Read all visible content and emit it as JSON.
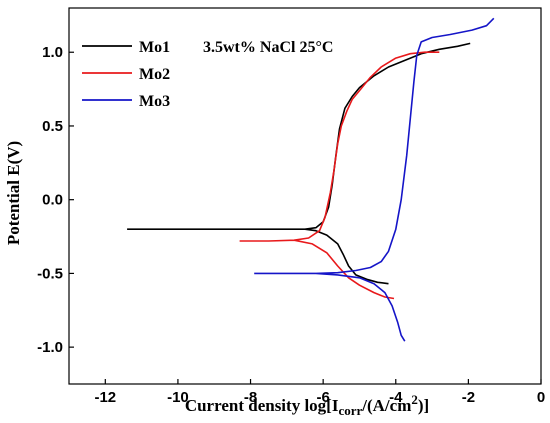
{
  "chart_data": {
    "type": "line",
    "title": "",
    "annotation": "3.5wt% NaCl  25°C",
    "xlabel": "Current density log[Icorr/(A/cm2)]",
    "xlabel_parts": {
      "prefix": "Current density log[I",
      "sub": "corr",
      "mid": "/(A/cm",
      "sup": "2",
      "suffix": ")]"
    },
    "ylabel": "Potential E(V)",
    "xlim": [
      -13,
      0
    ],
    "ylim": [
      -1.25,
      1.3
    ],
    "x_ticks": [
      -12,
      -10,
      -8,
      -6,
      -4,
      -2,
      0
    ],
    "x_tick_labels": [
      "-12",
      "-10",
      "-8",
      "-6",
      "-4",
      "-2",
      "0"
    ],
    "y_ticks": [
      -1.0,
      -0.5,
      0.0,
      0.5,
      1.0
    ],
    "y_tick_labels": [
      "-1.0",
      "-0.5",
      "0.0",
      "0.5",
      "1.0"
    ],
    "grid": false,
    "legend_position": "top-left",
    "series": [
      {
        "name": "Mo1",
        "color": "#000000",
        "points": [
          [
            -11.4,
            -0.2
          ],
          [
            -9.0,
            -0.2
          ],
          [
            -7.0,
            -0.2
          ],
          [
            -6.5,
            -0.2
          ],
          [
            -6.2,
            -0.19
          ],
          [
            -6.0,
            -0.15
          ],
          [
            -5.85,
            -0.05
          ],
          [
            -5.75,
            0.1
          ],
          [
            -5.65,
            0.3
          ],
          [
            -5.55,
            0.48
          ],
          [
            -5.4,
            0.62
          ],
          [
            -5.2,
            0.7
          ],
          [
            -5.0,
            0.76
          ],
          [
            -4.6,
            0.84
          ],
          [
            -4.2,
            0.9
          ],
          [
            -3.7,
            0.95
          ],
          [
            -3.3,
            0.99
          ],
          [
            -2.8,
            1.02
          ],
          [
            -2.3,
            1.04
          ],
          [
            -1.95,
            1.06
          ],
          null,
          [
            -6.5,
            -0.2
          ],
          [
            -6.2,
            -0.21
          ],
          [
            -5.9,
            -0.24
          ],
          [
            -5.6,
            -0.3
          ],
          [
            -5.45,
            -0.37
          ],
          [
            -5.3,
            -0.45
          ],
          [
            -5.1,
            -0.51
          ],
          [
            -4.8,
            -0.54
          ],
          [
            -4.5,
            -0.56
          ],
          [
            -4.2,
            -0.57
          ]
        ]
      },
      {
        "name": "Mo2",
        "color": "#e8191b",
        "points": [
          [
            -8.3,
            -0.28
          ],
          [
            -7.5,
            -0.28
          ],
          [
            -6.8,
            -0.275
          ],
          [
            -6.4,
            -0.26
          ],
          [
            -6.1,
            -0.21
          ],
          [
            -5.95,
            -0.12
          ],
          [
            -5.8,
            0.05
          ],
          [
            -5.7,
            0.2
          ],
          [
            -5.6,
            0.38
          ],
          [
            -5.5,
            0.5
          ],
          [
            -5.35,
            0.6
          ],
          [
            -5.2,
            0.68
          ],
          [
            -5.0,
            0.74
          ],
          [
            -4.7,
            0.83
          ],
          [
            -4.4,
            0.9
          ],
          [
            -4.0,
            0.96
          ],
          [
            -3.6,
            0.99
          ],
          [
            -3.2,
            1.0
          ],
          [
            -2.8,
            1.0
          ],
          null,
          [
            -6.8,
            -0.275
          ],
          [
            -6.3,
            -0.3
          ],
          [
            -5.9,
            -0.36
          ],
          [
            -5.6,
            -0.45
          ],
          [
            -5.3,
            -0.53
          ],
          [
            -5.0,
            -0.58
          ],
          [
            -4.6,
            -0.63
          ],
          [
            -4.3,
            -0.66
          ],
          [
            -4.05,
            -0.67
          ]
        ]
      },
      {
        "name": "Mo3",
        "color": "#1515c8",
        "points": [
          [
            -7.9,
            -0.5
          ],
          [
            -7.0,
            -0.5
          ],
          [
            -6.2,
            -0.5
          ],
          [
            -5.6,
            -0.495
          ],
          [
            -5.1,
            -0.48
          ],
          [
            -4.7,
            -0.46
          ],
          [
            -4.4,
            -0.42
          ],
          [
            -4.2,
            -0.35
          ],
          [
            -4.0,
            -0.2
          ],
          [
            -3.85,
            0.0
          ],
          [
            -3.7,
            0.3
          ],
          [
            -3.6,
            0.55
          ],
          [
            -3.5,
            0.8
          ],
          [
            -3.42,
            0.98
          ],
          [
            -3.3,
            1.07
          ],
          [
            -3.0,
            1.1
          ],
          [
            -2.5,
            1.12
          ],
          [
            -1.9,
            1.15
          ],
          [
            -1.5,
            1.18
          ],
          [
            -1.3,
            1.23
          ],
          null,
          [
            -6.2,
            -0.5
          ],
          [
            -5.6,
            -0.51
          ],
          [
            -5.0,
            -0.53
          ],
          [
            -4.6,
            -0.57
          ],
          [
            -4.3,
            -0.63
          ],
          [
            -4.1,
            -0.72
          ],
          [
            -3.95,
            -0.83
          ],
          [
            -3.85,
            -0.92
          ],
          [
            -3.75,
            -0.96
          ]
        ]
      }
    ]
  }
}
